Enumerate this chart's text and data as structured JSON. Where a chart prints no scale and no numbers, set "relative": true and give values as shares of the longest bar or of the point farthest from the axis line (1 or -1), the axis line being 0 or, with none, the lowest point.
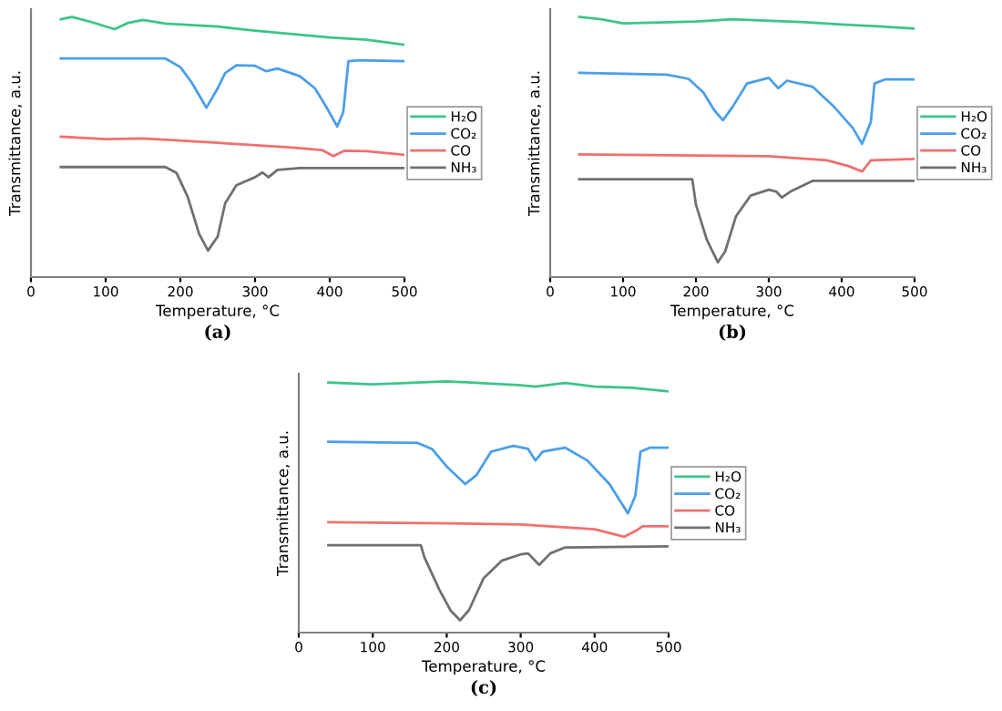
{
  "chart_data": [
    {
      "type": "line",
      "relative": true,
      "xlabel": "Temperature, °C",
      "ylabel": "Transmittance, a.u.",
      "annotations": [
        "(a)"
      ],
      "xlim": [
        0,
        500
      ],
      "xticks": [
        0,
        100,
        200,
        300,
        400,
        500
      ],
      "tick_labels": "x",
      "grid": false,
      "legend": "right",
      "line_style": "solid",
      "marker": "none",
      "series": [
        {
          "name": "H₂O",
          "color": "#3cc48a",
          "x": [
            40,
            55,
            80,
            112,
            130,
            150,
            180,
            250,
            300,
            400,
            450,
            500
          ],
          "values": [
            0.991,
            1.0,
            0.981,
            0.953,
            0.977,
            0.988,
            0.974,
            0.963,
            0.947,
            0.921,
            0.912,
            0.893
          ]
        },
        {
          "name": "CO₂",
          "color": "#4a9fe8",
          "x": [
            40,
            180,
            200,
            215,
            235,
            250,
            260,
            275,
            300,
            315,
            330,
            360,
            380,
            395,
            410,
            418,
            425,
            440,
            500
          ],
          "values": [
            0.84,
            0.84,
            0.807,
            0.749,
            0.651,
            0.726,
            0.784,
            0.814,
            0.812,
            0.791,
            0.802,
            0.772,
            0.726,
            0.656,
            0.579,
            0.633,
            0.83,
            0.833,
            0.83
          ]
        },
        {
          "name": "CO",
          "color": "#f07070",
          "x": [
            40,
            100,
            150,
            250,
            350,
            390,
            405,
            420,
            450,
            500
          ],
          "values": [
            0.54,
            0.53,
            0.533,
            0.516,
            0.498,
            0.488,
            0.465,
            0.486,
            0.484,
            0.47
          ]
        },
        {
          "name": "NH₃",
          "color": "#707070",
          "x": [
            40,
            180,
            195,
            210,
            225,
            237,
            250,
            260,
            275,
            300,
            310,
            318,
            330,
            360,
            500
          ],
          "values": [
            0.423,
            0.423,
            0.4,
            0.307,
            0.167,
            0.102,
            0.156,
            0.284,
            0.353,
            0.384,
            0.402,
            0.384,
            0.412,
            0.419,
            0.419
          ]
        }
      ]
    },
    {
      "type": "line",
      "relative": true,
      "xlabel": "Temperature, °C",
      "ylabel": "Transmittance, a.u.",
      "annotations": [
        "(b)"
      ],
      "xlim": [
        0,
        500
      ],
      "xticks": [
        0,
        100,
        200,
        300,
        400,
        500
      ],
      "tick_labels": "x",
      "grid": false,
      "legend": "right",
      "line_style": "solid",
      "marker": "none",
      "series": [
        {
          "name": "H₂O",
          "color": "#3cc48a",
          "x": [
            40,
            70,
            100,
            200,
            250,
            350,
            400,
            450,
            500
          ],
          "values": [
            1.0,
            0.991,
            0.975,
            0.982,
            0.991,
            0.98,
            0.971,
            0.964,
            0.955
          ]
        },
        {
          "name": "CO₂",
          "color": "#4a9fe8",
          "x": [
            40,
            160,
            190,
            210,
            225,
            237,
            250,
            270,
            300,
            313,
            325,
            360,
            390,
            415,
            428,
            440,
            445,
            460,
            500
          ],
          "values": [
            0.785,
            0.778,
            0.762,
            0.71,
            0.642,
            0.603,
            0.653,
            0.744,
            0.766,
            0.726,
            0.755,
            0.732,
            0.653,
            0.574,
            0.512,
            0.596,
            0.744,
            0.76,
            0.76
          ]
        },
        {
          "name": "CO",
          "color": "#f07070",
          "x": [
            40,
            200,
            300,
            380,
            410,
            428,
            440,
            500
          ],
          "values": [
            0.472,
            0.467,
            0.465,
            0.449,
            0.426,
            0.406,
            0.449,
            0.454
          ]
        },
        {
          "name": "NH₃",
          "color": "#707070",
          "x": [
            40,
            195,
            200,
            215,
            230,
            240,
            255,
            275,
            300,
            310,
            318,
            330,
            360,
            500
          ],
          "values": [
            0.376,
            0.376,
            0.279,
            0.143,
            0.057,
            0.098,
            0.234,
            0.313,
            0.336,
            0.329,
            0.306,
            0.329,
            0.37,
            0.37
          ]
        }
      ]
    },
    {
      "type": "line",
      "relative": true,
      "xlabel": "Temperature, °C",
      "ylabel": "Transmittance, a.u.",
      "annotations": [
        "(c)"
      ],
      "xlim": [
        0,
        500
      ],
      "xticks": [
        0,
        100,
        200,
        300,
        400,
        500
      ],
      "tick_labels": "x",
      "grid": false,
      "legend": "right",
      "line_style": "solid",
      "marker": "none",
      "series": [
        {
          "name": "H₂O",
          "color": "#3cc48a",
          "x": [
            40,
            100,
            200,
            300,
            320,
            360,
            400,
            450,
            500
          ],
          "values": [
            0.995,
            0.988,
            1.0,
            0.984,
            0.979,
            0.993,
            0.979,
            0.974,
            0.96
          ]
        },
        {
          "name": "CO₂",
          "color": "#4a9fe8",
          "x": [
            40,
            160,
            180,
            200,
            225,
            240,
            260,
            290,
            310,
            320,
            330,
            360,
            390,
            420,
            445,
            455,
            462,
            475,
            500
          ],
          "values": [
            0.759,
            0.755,
            0.731,
            0.661,
            0.591,
            0.626,
            0.72,
            0.743,
            0.731,
            0.685,
            0.72,
            0.736,
            0.685,
            0.591,
            0.474,
            0.544,
            0.72,
            0.736,
            0.736
          ]
        },
        {
          "name": "CO",
          "color": "#f07070",
          "x": [
            40,
            200,
            300,
            400,
            440,
            455,
            465,
            500
          ],
          "values": [
            0.439,
            0.435,
            0.43,
            0.411,
            0.381,
            0.404,
            0.423,
            0.423
          ]
        },
        {
          "name": "NH₃",
          "color": "#707070",
          "x": [
            40,
            165,
            170,
            190,
            205,
            218,
            230,
            250,
            275,
            300,
            310,
            325,
            340,
            360,
            500
          ],
          "values": [
            0.348,
            0.348,
            0.299,
            0.171,
            0.089,
            0.049,
            0.089,
            0.217,
            0.287,
            0.311,
            0.315,
            0.269,
            0.315,
            0.339,
            0.343
          ]
        }
      ]
    }
  ]
}
